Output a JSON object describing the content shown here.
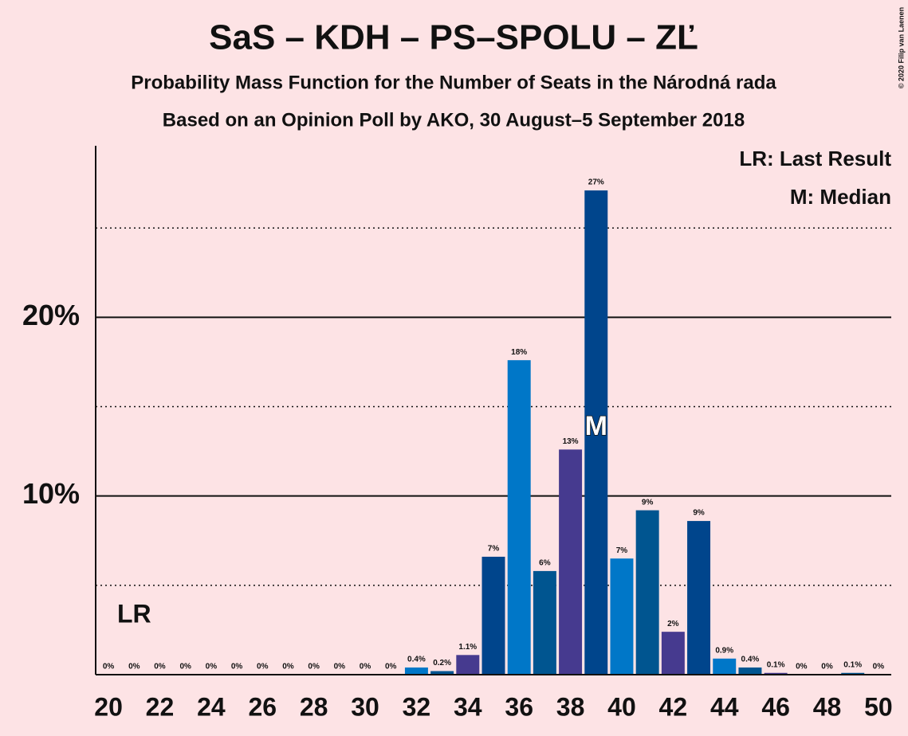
{
  "chart_data": {
    "type": "bar",
    "title": "SaS – KDH – PS–SPOLU – ZĽ",
    "subtitle": [
      "Probability Mass Function for the Number of Seats in the Národná rada",
      "Based on an Opinion Poll by AKO, 30 August–5 September 2018"
    ],
    "credit": "© 2020 Filip van Laenen",
    "x": [
      20,
      21,
      22,
      23,
      24,
      25,
      26,
      27,
      28,
      29,
      30,
      31,
      32,
      33,
      34,
      35,
      36,
      37,
      38,
      39,
      40,
      41,
      42,
      43,
      44,
      45,
      46,
      47,
      48,
      49,
      50
    ],
    "values": [
      0,
      0,
      0,
      0,
      0,
      0,
      0,
      0,
      0,
      0,
      0,
      0,
      0.4,
      0.2,
      1.1,
      6.6,
      17.6,
      5.8,
      12.6,
      27.1,
      6.5,
      9.2,
      2.4,
      8.6,
      0.9,
      0.4,
      0.1,
      0,
      0,
      0.1,
      0
    ],
    "value_labels": [
      "0%",
      "0%",
      "0%",
      "0%",
      "0%",
      "0%",
      "0%",
      "0%",
      "0%",
      "0%",
      "0%",
      "0%",
      "0.4%",
      "0.2%",
      "1.1%",
      "7%",
      "18%",
      "6%",
      "13%",
      "27%",
      "7%",
      "9%",
      "2%",
      "9%",
      "0.9%",
      "0.4%",
      "0.1%",
      "0%",
      "0%",
      "0.1%",
      "0%"
    ],
    "colors": [
      "#0077c8",
      "#005590",
      "#463a8f",
      "#00458c",
      "#0077c8",
      "#005590",
      "#463a8f",
      "#00458c",
      "#0077c8",
      "#005590",
      "#463a8f",
      "#00458c",
      "#0077c8",
      "#005590",
      "#463a8f",
      "#00458c",
      "#0077c8",
      "#005590",
      "#463a8f",
      "#00458c",
      "#0077c8",
      "#005590",
      "#463a8f",
      "#00458c",
      "#0077c8",
      "#005590",
      "#463a8f",
      "#00458c",
      "#0077c8",
      "#005590",
      "#463a8f"
    ],
    "xlim": [
      19.5,
      50.5
    ],
    "xticks": [
      20,
      22,
      24,
      26,
      28,
      30,
      32,
      34,
      36,
      38,
      40,
      42,
      44,
      46,
      48,
      50
    ],
    "ylim": [
      0,
      29.6
    ],
    "yticks": [
      {
        "value": 10,
        "label": "10%"
      },
      {
        "value": 20,
        "label": "20%"
      }
    ],
    "minor_yticks": [
      5,
      15,
      25
    ],
    "grid": true,
    "annotations": {
      "last_result": {
        "x": 21,
        "label": "LR"
      },
      "median": {
        "x": 39,
        "label": "M"
      }
    },
    "legend": [
      "LR: Last Result",
      "M: Median"
    ],
    "legend_position": "upper right"
  }
}
